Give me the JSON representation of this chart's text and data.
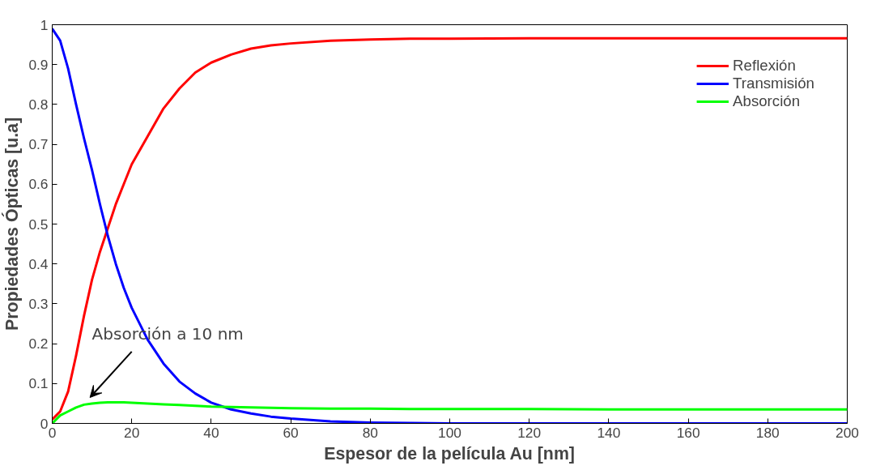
{
  "chart_data": {
    "type": "line",
    "xlabel": "Espesor de la película Au [nm]",
    "ylabel": "Propiedades Ópticas [u.a]",
    "x": [
      0,
      2,
      4,
      6,
      8,
      10,
      12,
      14,
      16,
      18,
      20,
      24,
      28,
      32,
      36,
      40,
      45,
      50,
      55,
      60,
      70,
      80,
      90,
      100,
      120,
      140,
      160,
      180,
      200
    ],
    "series": [
      {
        "name": "Reflexión",
        "color": "#ff0000",
        "values": [
          0.01,
          0.03,
          0.08,
          0.17,
          0.27,
          0.36,
          0.43,
          0.49,
          0.55,
          0.6,
          0.65,
          0.72,
          0.79,
          0.84,
          0.88,
          0.905,
          0.925,
          0.94,
          0.948,
          0.953,
          0.96,
          0.963,
          0.965,
          0.965,
          0.966,
          0.966,
          0.966,
          0.966,
          0.966
        ]
      },
      {
        "name": "Transmisión",
        "color": "#0000ff",
        "values": [
          0.99,
          0.96,
          0.89,
          0.8,
          0.715,
          0.636,
          0.55,
          0.47,
          0.4,
          0.34,
          0.29,
          0.21,
          0.15,
          0.105,
          0.075,
          0.052,
          0.035,
          0.025,
          0.017,
          0.012,
          0.005,
          0.002,
          0.001,
          0,
          0,
          0,
          0,
          0,
          0
        ]
      },
      {
        "name": "Absorción",
        "color": "#00ff00",
        "values": [
          0,
          0.02,
          0.03,
          0.04,
          0.047,
          0.05,
          0.052,
          0.053,
          0.053,
          0.053,
          0.052,
          0.05,
          0.048,
          0.046,
          0.044,
          0.042,
          0.041,
          0.04,
          0.039,
          0.038,
          0.037,
          0.037,
          0.036,
          0.036,
          0.036,
          0.035,
          0.035,
          0.035,
          0.035
        ]
      }
    ],
    "annotations": [
      {
        "text": "Absorción a 10 nm",
        "x": 10,
        "y": 0.05
      }
    ],
    "xlim": [
      0,
      200
    ],
    "ylim": [
      0,
      1
    ],
    "xticks": [
      0,
      20,
      40,
      60,
      80,
      100,
      120,
      140,
      160,
      180,
      200
    ],
    "yticks": [
      0,
      0.1,
      0.2,
      0.3,
      0.4,
      0.5,
      0.6,
      0.7,
      0.8,
      0.9,
      1
    ],
    "grid": false,
    "legend": "top right",
    "line_style": "solid",
    "marker": "none"
  }
}
